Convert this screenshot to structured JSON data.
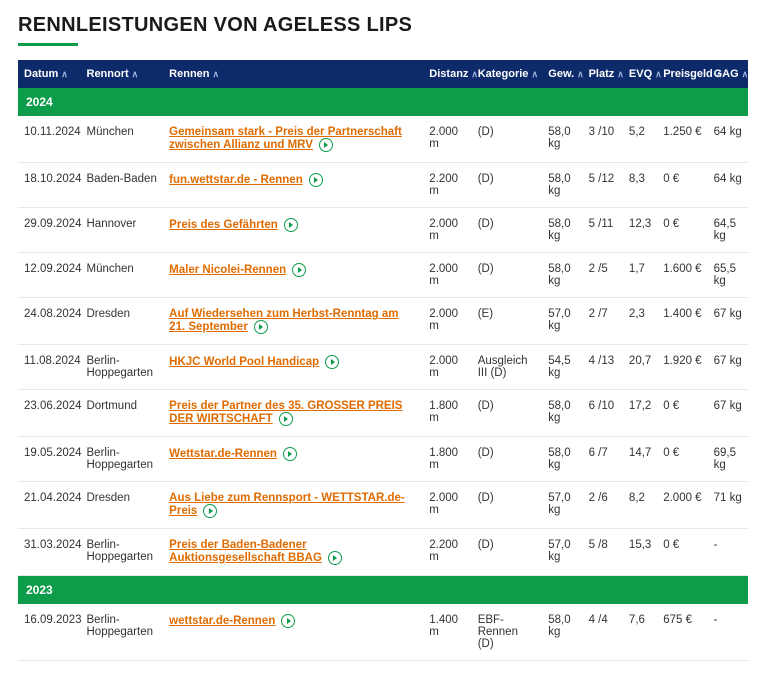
{
  "title": "RENNLEISTUNGEN VON AGELESS LIPS",
  "colors": {
    "header_bg": "#0d2b6b",
    "year_bg": "#0d9c4a",
    "link": "#e06b00",
    "underline": "#0d9c4a"
  },
  "columns": [
    {
      "label": "Datum",
      "sortable": true
    },
    {
      "label": "Rennort",
      "sortable": true
    },
    {
      "label": "Rennen",
      "sortable": true
    },
    {
      "label": "Distanz",
      "sortable": true
    },
    {
      "label": "Kategorie",
      "sortable": true
    },
    {
      "label": "Gew.",
      "sortable": true
    },
    {
      "label": "Platz",
      "sortable": true
    },
    {
      "label": "EVQ",
      "sortable": true
    },
    {
      "label": "Preisgeld",
      "sortable": true
    },
    {
      "label": "GAG",
      "sortable": true
    }
  ],
  "years": [
    {
      "year": "2024",
      "rows": [
        {
          "date": "10.11.2024",
          "loc": "München",
          "race": "Gemeinsam stark - Preis der Partnerschaft zwischen Allianz und MRV",
          "dist": "2.000 m",
          "cat": "(D)",
          "wt": "58,0 kg",
          "place": "3 /10",
          "evq": "5,2",
          "prize": "1.250 €",
          "gag": "64 kg"
        },
        {
          "date": "18.10.2024",
          "loc": "Baden-Baden",
          "race": "fun.wettstar.de - Rennen",
          "dist": "2.200 m",
          "cat": "(D)",
          "wt": "58,0 kg",
          "place": "5 /12",
          "evq": "8,3",
          "prize": "0 €",
          "gag": "64 kg"
        },
        {
          "date": "29.09.2024",
          "loc": "Hannover",
          "race": "Preis des Gefährten",
          "dist": "2.000 m",
          "cat": "(D)",
          "wt": "58,0 kg",
          "place": "5 /11",
          "evq": "12,3",
          "prize": "0 €",
          "gag": "64,5 kg"
        },
        {
          "date": "12.09.2024",
          "loc": "München",
          "race": "Maler Nicolei-Rennen",
          "dist": "2.000 m",
          "cat": "(D)",
          "wt": "58,0 kg",
          "place": "2 /5",
          "evq": "1,7",
          "prize": "1.600 €",
          "gag": "65,5 kg"
        },
        {
          "date": "24.08.2024",
          "loc": "Dresden",
          "race": "Auf Wiedersehen zum Herbst-Renntag am 21. September",
          "dist": "2.000 m",
          "cat": "(E)",
          "wt": "57,0 kg",
          "place": "2 /7",
          "evq": "2,3",
          "prize": "1.400 €",
          "gag": "67 kg"
        },
        {
          "date": "11.08.2024",
          "loc": "Berlin-Hoppegarten",
          "race": "HKJC World Pool Handicap",
          "dist": "2.000 m",
          "cat": "Ausgleich III (D)",
          "wt": "54,5 kg",
          "place": "4 /13",
          "evq": "20,7",
          "prize": "1.920 €",
          "gag": "67 kg"
        },
        {
          "date": "23.06.2024",
          "loc": "Dortmund",
          "race": "Preis der Partner des 35. GROSSER PREIS DER WIRTSCHAFT",
          "dist": "1.800 m",
          "cat": "(D)",
          "wt": "58,0 kg",
          "place": "6 /10",
          "evq": "17,2",
          "prize": "0 €",
          "gag": "67 kg"
        },
        {
          "date": "19.05.2024",
          "loc": "Berlin-Hoppegarten",
          "race": "Wettstar.de-Rennen",
          "dist": "1.800 m",
          "cat": "(D)",
          "wt": "58,0 kg",
          "place": "6 /7",
          "evq": "14,7",
          "prize": "0 €",
          "gag": "69,5 kg"
        },
        {
          "date": "21.04.2024",
          "loc": "Dresden",
          "race": "Aus Liebe zum Rennsport - WETTSTAR.de-Preis",
          "dist": "2.000 m",
          "cat": "(D)",
          "wt": "57,0 kg",
          "place": "2 /6",
          "evq": "8,2",
          "prize": "2.000 €",
          "gag": "71 kg"
        },
        {
          "date": "31.03.2024",
          "loc": "Berlin-Hoppegarten",
          "race": "Preis der Baden-Badener Auktionsgesellschaft BBAG",
          "dist": "2.200 m",
          "cat": "(D)",
          "wt": "57,0 kg",
          "place": "5 /8",
          "evq": "15,3",
          "prize": "0 €",
          "gag": "-"
        }
      ]
    },
    {
      "year": "2023",
      "rows": [
        {
          "date": "16.09.2023",
          "loc": "Berlin-Hoppegarten",
          "race": "wettstar.de-Rennen",
          "dist": "1.400 m",
          "cat": "EBF-Rennen (D)",
          "wt": "58,0 kg",
          "place": "4 /4",
          "evq": "7,6",
          "prize": "675 €",
          "gag": "-"
        }
      ]
    }
  ]
}
